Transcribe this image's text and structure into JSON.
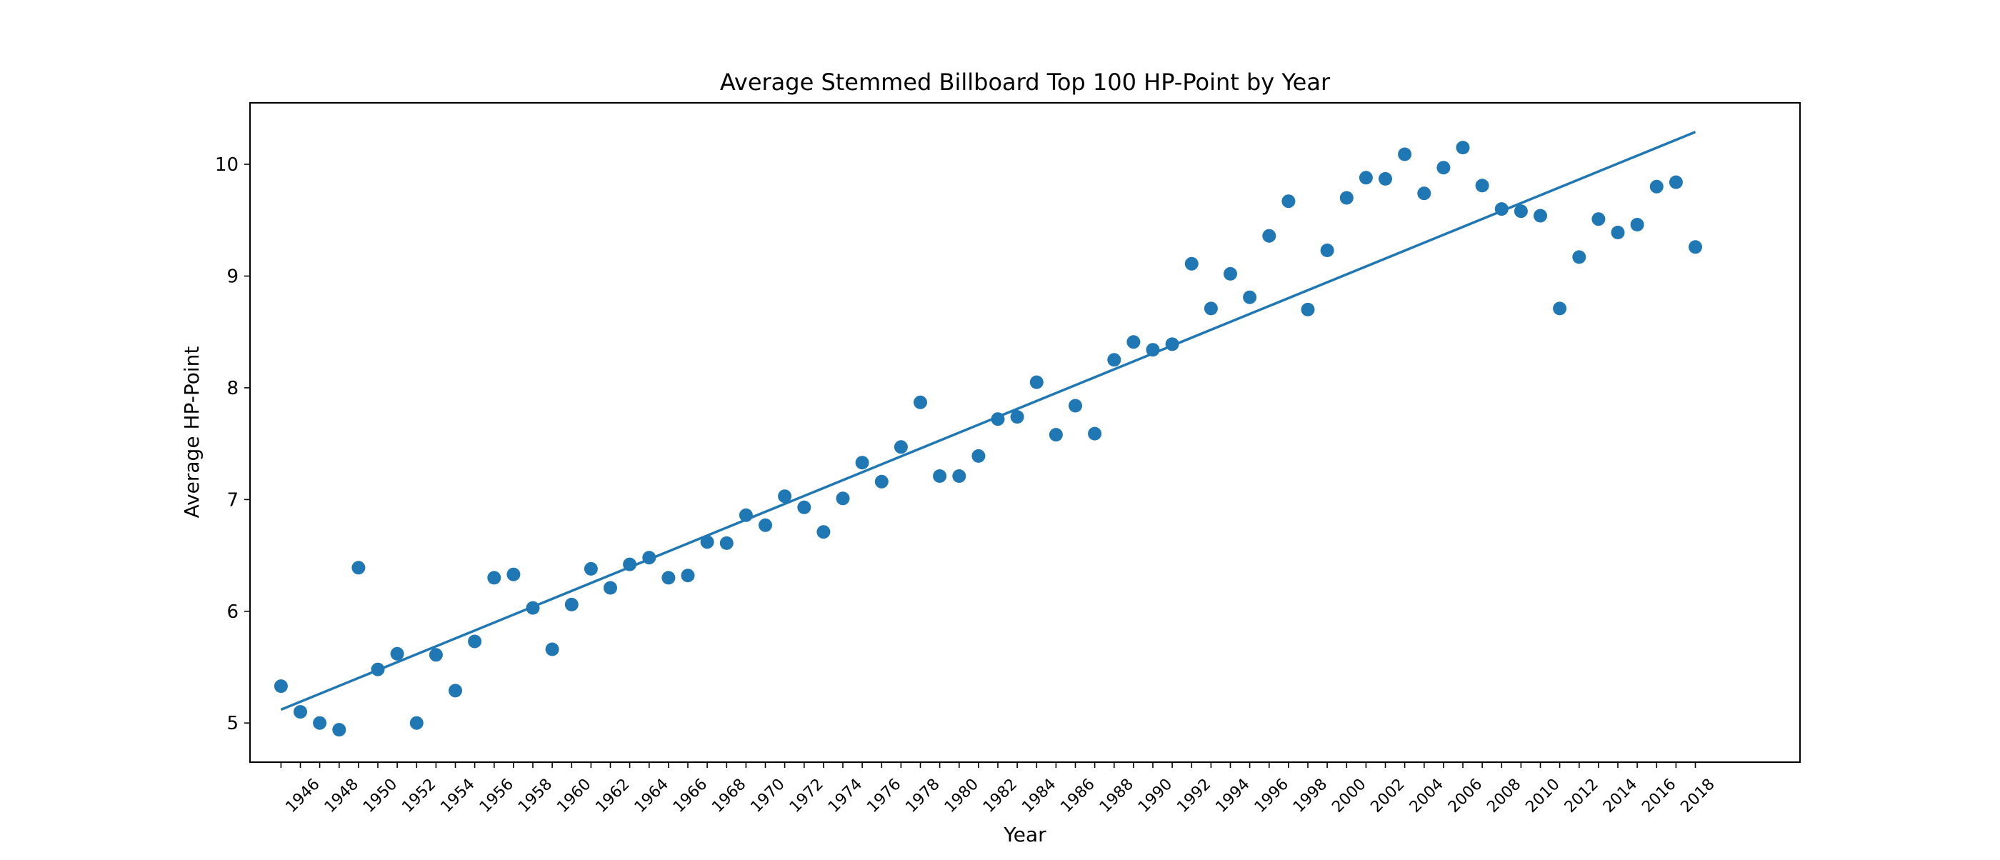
{
  "chart_data": {
    "type": "scatter",
    "title": "Average Stemmed Billboard Top 100 HP-Point by Year",
    "xlabel": "Year",
    "ylabel": "Average HP-Point",
    "xlim": [
      1943.4,
      2023.4
    ],
    "ylim": [
      4.65,
      10.55
    ],
    "x_ticks": [
      "1946",
      "1948",
      "1950",
      "1952",
      "1954",
      "1956",
      "1958",
      "1960",
      "1962",
      "1964",
      "1966",
      "1968",
      "1970",
      "1972",
      "1974",
      "1976",
      "1978",
      "1980",
      "1982",
      "1984",
      "1986",
      "1988",
      "1990",
      "1992",
      "1994",
      "1996",
      "1998",
      "2000",
      "2002",
      "2004",
      "2006",
      "2008",
      "2010",
      "2012",
      "2014",
      "2016",
      "2018"
    ],
    "y_ticks": [
      "5",
      "6",
      "7",
      "8",
      "9",
      "10"
    ],
    "grid": false,
    "color": "#1f77b4",
    "series": [
      {
        "kind": "scatter",
        "x": [
          1945,
          1946,
          1947,
          1948,
          1949,
          1950,
          1951,
          1952,
          1953,
          1954,
          1955,
          1956,
          1957,
          1958,
          1959,
          1960,
          1961,
          1962,
          1963,
          1964,
          1965,
          1966,
          1967,
          1968,
          1969,
          1970,
          1971,
          1972,
          1973,
          1974,
          1975,
          1976,
          1977,
          1978,
          1979,
          1980,
          1981,
          1982,
          1983,
          1984,
          1985,
          1986,
          1987,
          1988,
          1989,
          1990,
          1991,
          1992,
          1993,
          1994,
          1995,
          1996,
          1997,
          1998,
          1999,
          2000,
          2001,
          2002,
          2003,
          2004,
          2005,
          2006,
          2007,
          2008,
          2009,
          2010,
          2011,
          2012,
          2013,
          2014,
          2015,
          2016,
          2017,
          2018
        ],
        "y": [
          5.33,
          5.1,
          5.0,
          4.94,
          6.39,
          5.48,
          5.62,
          5.0,
          5.61,
          5.29,
          5.73,
          6.3,
          6.33,
          6.03,
          5.66,
          6.06,
          6.38,
          6.21,
          6.42,
          6.48,
          6.3,
          6.32,
          6.62,
          6.61,
          6.86,
          6.77,
          7.03,
          6.93,
          6.71,
          7.01,
          7.33,
          7.16,
          7.47,
          7.87,
          7.21,
          7.21,
          7.39,
          7.72,
          7.74,
          8.05,
          7.58,
          7.84,
          7.59,
          8.25,
          8.41,
          8.34,
          8.39,
          9.11,
          8.71,
          9.02,
          8.81,
          9.36,
          9.67,
          8.7,
          9.23,
          9.7,
          9.88,
          9.87,
          10.09,
          9.74,
          9.97,
          10.15,
          9.81,
          9.6,
          9.58,
          9.54,
          8.71,
          9.17,
          9.51,
          9.39,
          9.46,
          9.8,
          9.84,
          9.26
        ]
      },
      {
        "kind": "line",
        "name": "trend",
        "x": [
          1945,
          2018
        ],
        "y": [
          5.12,
          10.29
        ]
      }
    ]
  }
}
